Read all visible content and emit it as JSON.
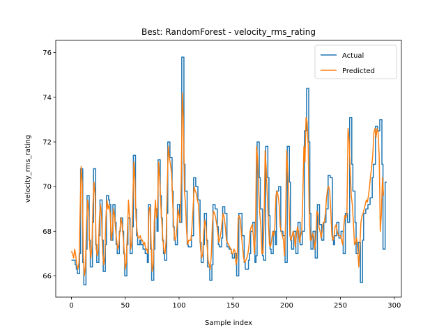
{
  "chart_data": {
    "type": "line",
    "title": "Best: RandomForest - velocity_rms_rating",
    "xlabel": "Sample index",
    "ylabel": "velocity_rms_rating",
    "xlim": [
      -14.6,
      306.6
    ],
    "ylim": [
      65.05,
      76.55
    ],
    "xticks": [
      0,
      50,
      100,
      150,
      200,
      250,
      300
    ],
    "yticks": [
      66,
      68,
      70,
      72,
      74,
      76
    ],
    "legend": "top-right",
    "grid": false,
    "x_start": 0,
    "series": [
      {
        "name": "Actual",
        "color": "#1f77b4",
        "step": true,
        "values": [
          66.7,
          66.7,
          66.7,
          66.7,
          66.5,
          66.3,
          66.1,
          66.1,
          67.0,
          70.8,
          70.8,
          66.6,
          65.6,
          65.6,
          67.2,
          69.6,
          69.6,
          67.6,
          66.4,
          66.4,
          68.4,
          70.8,
          70.8,
          67.4,
          66.6,
          66.6,
          67.8,
          69.4,
          69.4,
          67.6,
          66.2,
          66.2,
          67.4,
          69.6,
          69.6,
          69.4,
          69.2,
          67.6,
          67.6,
          69.2,
          69.2,
          68.4,
          67.4,
          67.0,
          67.0,
          68.0,
          68.6,
          68.6,
          68.0,
          67.0,
          66.0,
          66.0,
          67.4,
          68.6,
          68.6,
          67.0,
          67.0,
          68.2,
          71.4,
          71.4,
          69.0,
          67.8,
          67.4,
          67.4,
          67.6,
          67.4,
          67.4,
          67.2,
          67.2,
          67.0,
          67.0,
          66.6,
          69.2,
          69.2,
          67.2,
          65.8,
          65.8,
          67.2,
          69.0,
          69.0,
          68.0,
          71.2,
          71.2,
          69.6,
          68.6,
          67.6,
          67.0,
          66.7,
          66.7,
          68.8,
          72.0,
          72.0,
          71.3,
          71.3,
          69.8,
          68.2,
          67.6,
          67.4,
          67.4,
          69.2,
          69.2,
          68.4,
          68.4,
          75.8,
          75.8,
          71.0,
          69.8,
          69.8,
          67.4,
          67.3,
          67.3,
          67.3,
          67.8,
          67.8,
          70.4,
          70.4,
          70.0,
          70.0,
          69.4,
          69.4,
          67.5,
          66.6,
          66.6,
          67.4,
          68.8,
          68.8,
          67.6,
          66.4,
          66.4,
          65.8,
          65.8,
          66.5,
          69.2,
          69.2,
          69.0,
          69.0,
          68.2,
          67.4,
          67.3,
          67.3,
          67.7,
          69.1,
          69.1,
          68.8,
          68.8,
          67.3,
          67.3,
          67.2,
          67.2,
          67.0,
          66.8,
          66.8,
          67.0,
          67.0,
          66.0,
          66.0,
          68.8,
          68.8,
          68.8,
          67.8,
          67.8,
          66.6,
          66.3,
          66.3,
          66.3,
          66.7,
          67.0,
          68.0,
          68.0,
          68.4,
          68.4,
          66.6,
          66.9,
          72.0,
          72.0,
          70.4,
          69.0,
          69.0,
          66.9,
          66.7,
          66.7,
          71.8,
          71.8,
          70.4,
          68.7,
          67.2,
          67.0,
          67.0,
          68.0,
          68.0,
          67.4,
          69.8,
          69.8,
          70.0,
          70.0,
          68.0,
          68.0,
          67.8,
          67.8,
          66.6,
          66.6,
          71.8,
          71.8,
          70.2,
          67.6,
          67.2,
          67.2,
          68.0,
          68.0,
          67.0,
          67.0,
          68.4,
          68.4,
          67.4,
          67.4,
          68.0,
          68.0,
          72.5,
          72.5,
          74.4,
          74.4,
          72.0,
          68.8,
          67.2,
          67.2,
          68.0,
          68.0,
          66.8,
          66.8,
          69.2,
          69.2,
          68.3,
          68.3,
          67.6,
          67.6,
          68.4,
          68.4,
          69.0,
          69.0,
          70.5,
          70.5,
          70.4,
          70.4,
          67.6,
          67.4,
          67.8,
          67.8,
          68.4,
          68.4,
          67.7,
          67.7,
          68.0,
          68.0,
          67.0,
          67.0,
          68.8,
          68.8,
          68.4,
          68.4,
          73.1,
          73.1,
          71.0,
          69.8,
          69.8,
          68.4,
          67.0,
          67.0,
          67.5,
          67.5,
          65.7,
          65.7,
          67.6,
          68.8,
          68.8,
          69.0,
          69.0,
          69.2,
          69.2,
          69.5,
          69.5,
          70.4,
          71.0,
          71.0,
          72.7,
          72.7,
          72.5,
          72.5,
          73.0,
          73.0,
          71.0,
          67.2,
          67.2,
          70.2,
          70.2
        ]
      },
      {
        "name": "Predicted",
        "color": "#ff7f0e",
        "step": false,
        "values": [
          67.1,
          67.0,
          66.8,
          67.2,
          66.9,
          66.5,
          66.3,
          66.6,
          68.8,
          70.9,
          70.2,
          66.9,
          66.0,
          66.4,
          68.4,
          69.4,
          68.9,
          67.3,
          66.8,
          67.3,
          69.2,
          70.2,
          69.6,
          67.2,
          66.9,
          67.2,
          68.6,
          69.2,
          68.6,
          67.0,
          66.5,
          66.9,
          68.6,
          69.4,
          69.0,
          69.2,
          68.8,
          67.6,
          68.0,
          69.0,
          68.7,
          68.1,
          67.6,
          67.2,
          67.4,
          68.0,
          68.6,
          68.3,
          67.8,
          67.1,
          66.3,
          66.6,
          68.0,
          69.4,
          68.6,
          67.2,
          67.5,
          69.4,
          71.1,
          70.3,
          68.6,
          68.0,
          67.7,
          67.7,
          67.8,
          67.6,
          67.6,
          67.4,
          67.5,
          67.2,
          67.2,
          67.0,
          68.9,
          69.1,
          67.5,
          66.2,
          66.5,
          68.4,
          69.4,
          68.6,
          69.0,
          71.1,
          70.4,
          69.2,
          68.4,
          67.6,
          67.1,
          67.0,
          67.6,
          70.0,
          71.8,
          71.3,
          71.0,
          70.6,
          69.4,
          68.2,
          67.6,
          67.7,
          68.2,
          69.0,
          68.7,
          68.4,
          70.2,
          74.2,
          73.0,
          69.8,
          69.2,
          68.0,
          67.4,
          67.6,
          67.6,
          67.6,
          68.2,
          69.0,
          70.0,
          69.8,
          69.7,
          69.4,
          69.2,
          68.2,
          67.2,
          66.8,
          67.0,
          68.0,
          68.5,
          68.2,
          67.4,
          66.7,
          66.5,
          66.3,
          67.0,
          68.4,
          68.9,
          68.8,
          68.6,
          68.3,
          67.9,
          67.5,
          67.7,
          68.0,
          68.4,
          68.8,
          68.6,
          68.2,
          67.6,
          67.5,
          67.4,
          67.3,
          67.2,
          67.0,
          67.0,
          67.2,
          67.1,
          66.5,
          66.8,
          68.6,
          68.7,
          68.5,
          67.8,
          67.3,
          66.8,
          66.6,
          66.7,
          66.8,
          67.0,
          67.4,
          68.0,
          68.2,
          68.3,
          67.8,
          67.0,
          68.0,
          71.8,
          71.2,
          69.8,
          68.8,
          68.2,
          67.0,
          67.0,
          68.5,
          71.6,
          70.8,
          69.6,
          68.4,
          67.4,
          67.3,
          67.6,
          68.0,
          67.8,
          68.2,
          69.6,
          69.8,
          69.6,
          69.2,
          68.2,
          68.0,
          67.8,
          67.6,
          66.9,
          68.5,
          71.6,
          70.6,
          69.6,
          67.8,
          67.6,
          67.8,
          68.0,
          67.8,
          67.3,
          67.8,
          68.2,
          68.0,
          67.5,
          67.8,
          68.0,
          69.6,
          71.8,
          71.1,
          73.1,
          72.9,
          71.8,
          68.6,
          67.6,
          67.6,
          67.9,
          67.8,
          67.2,
          67.6,
          68.9,
          68.8,
          68.2,
          68.0,
          67.7,
          68.0,
          68.4,
          68.4,
          68.8,
          69.5,
          69.9,
          70.0,
          69.8,
          68.9,
          67.8,
          67.6,
          67.8,
          68.2,
          68.3,
          68.0,
          67.8,
          67.8,
          67.8,
          67.6,
          67.4,
          68.2,
          68.7,
          68.6,
          68.8,
          72.6,
          72.1,
          70.8,
          69.6,
          69.2,
          68.4,
          67.4,
          67.5,
          67.7,
          67.2,
          66.4,
          67.3,
          68.4,
          68.7,
          68.8,
          69.0,
          69.2,
          69.4,
          69.3,
          69.6,
          70.0,
          70.5,
          70.9,
          71.4,
          72.4,
          72.6,
          72.2,
          72.6,
          72.4,
          71.3,
          68.0,
          68.8,
          70.4,
          69.6
        ]
      }
    ]
  }
}
